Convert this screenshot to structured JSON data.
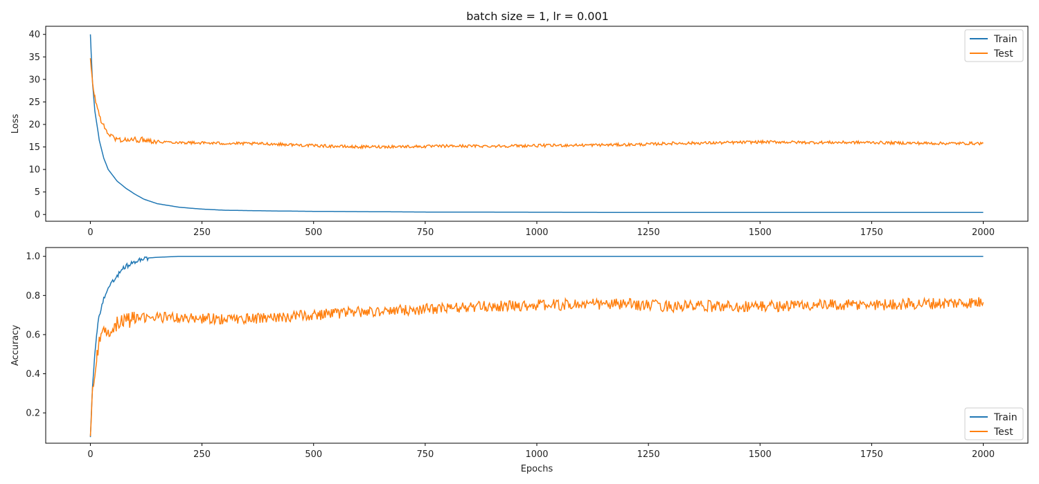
{
  "figure": {
    "title": "batch size = 1, lr = 0.001"
  },
  "chart_data": [
    {
      "type": "line",
      "title": "batch size = 1, lr = 0.001",
      "xlabel": "",
      "ylabel": "Loss",
      "xlim": [
        -100,
        2100
      ],
      "ylim": [
        -1.5,
        41.8
      ],
      "xticks": [
        0,
        250,
        500,
        750,
        1000,
        1250,
        1500,
        1750,
        2000
      ],
      "yticks": [
        0,
        5,
        10,
        15,
        20,
        25,
        30,
        35,
        40
      ],
      "grid": false,
      "legend": "top-right",
      "series": [
        {
          "name": "Train",
          "color": "#1f77b4",
          "x": [
            0,
            5,
            10,
            20,
            30,
            40,
            60,
            80,
            100,
            120,
            150,
            200,
            250,
            300,
            400,
            500,
            750,
            1000,
            1250,
            1500,
            1750,
            2000
          ],
          "values": [
            40,
            29,
            23,
            16.5,
            12.5,
            10,
            7.4,
            5.8,
            4.5,
            3.4,
            2.4,
            1.6,
            1.2,
            0.95,
            0.8,
            0.7,
            0.55,
            0.5,
            0.45,
            0.45,
            0.45,
            0.45
          ]
        },
        {
          "name": "Test",
          "color": "#ff7f0e",
          "x": [
            0,
            5,
            10,
            20,
            30,
            40,
            50,
            60,
            80,
            100,
            125,
            150,
            200,
            250,
            300,
            400,
            500,
            600,
            700,
            750,
            800,
            900,
            1000,
            1100,
            1200,
            1250,
            1300,
            1400,
            1500,
            1550,
            1600,
            1700,
            1750,
            1800,
            1900,
            2000
          ],
          "values": [
            34.5,
            29,
            26,
            22,
            19.5,
            18,
            17.2,
            16.7,
            16.5,
            16.6,
            16.6,
            16.2,
            16.0,
            15.9,
            15.8,
            15.7,
            15.3,
            15.0,
            15.1,
            15.1,
            15.2,
            15.2,
            15.3,
            15.4,
            15.5,
            15.6,
            15.8,
            15.9,
            16.1,
            16.1,
            16.0,
            16.0,
            16.0,
            15.9,
            15.8,
            15.8
          ]
        }
      ]
    },
    {
      "type": "line",
      "title": "",
      "xlabel": "Epochs",
      "ylabel": "Accuracy",
      "xlim": [
        -100,
        2100
      ],
      "ylim": [
        0.045,
        1.045
      ],
      "xticks": [
        0,
        250,
        500,
        750,
        1000,
        1250,
        1500,
        1750,
        2000
      ],
      "yticks": [
        0.2,
        0.4,
        0.6,
        0.8,
        1.0
      ],
      "ytick_labels": [
        "0.2",
        "0.4",
        "0.6",
        "0.8",
        "1.0"
      ],
      "grid": false,
      "legend": "bottom-right",
      "series": [
        {
          "name": "Train",
          "color": "#1f77b4",
          "x": [
            0,
            5,
            10,
            15,
            20,
            30,
            40,
            50,
            60,
            70,
            80,
            90,
            100,
            120,
            150,
            200,
            250,
            500,
            1000,
            1500,
            2000
          ],
          "values": [
            0.08,
            0.35,
            0.5,
            0.62,
            0.7,
            0.78,
            0.83,
            0.87,
            0.9,
            0.93,
            0.95,
            0.96,
            0.97,
            0.99,
            0.995,
            1.0,
            1.0,
            1.0,
            1.0,
            1.0,
            1.0
          ]
        },
        {
          "name": "Test",
          "color": "#ff7f0e",
          "x": [
            0,
            5,
            10,
            15,
            20,
            30,
            40,
            50,
            60,
            80,
            100,
            150,
            200,
            250,
            300,
            400,
            500,
            600,
            700,
            750,
            800,
            900,
            1000,
            1100,
            1200,
            1250,
            1300,
            1400,
            1500,
            1600,
            1700,
            1800,
            1900,
            2000
          ],
          "values": [
            0.1,
            0.3,
            0.42,
            0.5,
            0.56,
            0.6,
            0.62,
            0.64,
            0.66,
            0.67,
            0.68,
            0.69,
            0.685,
            0.68,
            0.68,
            0.685,
            0.7,
            0.715,
            0.725,
            0.73,
            0.735,
            0.745,
            0.75,
            0.755,
            0.755,
            0.75,
            0.745,
            0.745,
            0.745,
            0.75,
            0.75,
            0.755,
            0.76,
            0.765
          ]
        }
      ]
    }
  ]
}
